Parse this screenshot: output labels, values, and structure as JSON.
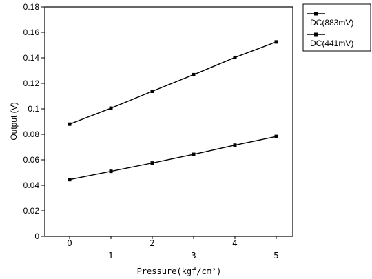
{
  "chart_data": {
    "type": "line",
    "x": [
      0,
      1,
      2,
      3,
      4,
      5
    ],
    "x_tick_labels": [
      "0",
      "1",
      "2",
      "3",
      "4",
      "5"
    ],
    "y_tick_labels": [
      "0",
      "0.02",
      "0.04",
      "0.06",
      "0.08",
      "0.1",
      "0.12",
      "0.14",
      "0.16",
      "0.18"
    ],
    "series": [
      {
        "name": "DC(883mV)",
        "values": [
          0.088,
          0.1005,
          0.1138,
          0.1268,
          0.1403,
          0.1525
        ]
      },
      {
        "name": "DC(441mV)",
        "values": [
          0.0445,
          0.051,
          0.0575,
          0.0643,
          0.0715,
          0.0783
        ]
      }
    ],
    "title": "",
    "xlabel": "Pressure(kgf/cm²)",
    "ylabel": "Output (V)",
    "xlim": [
      -0.6,
      5.4
    ],
    "ylim": [
      0,
      0.18
    ],
    "grid": false,
    "legend_position": "right",
    "line_color": "#000000"
  }
}
